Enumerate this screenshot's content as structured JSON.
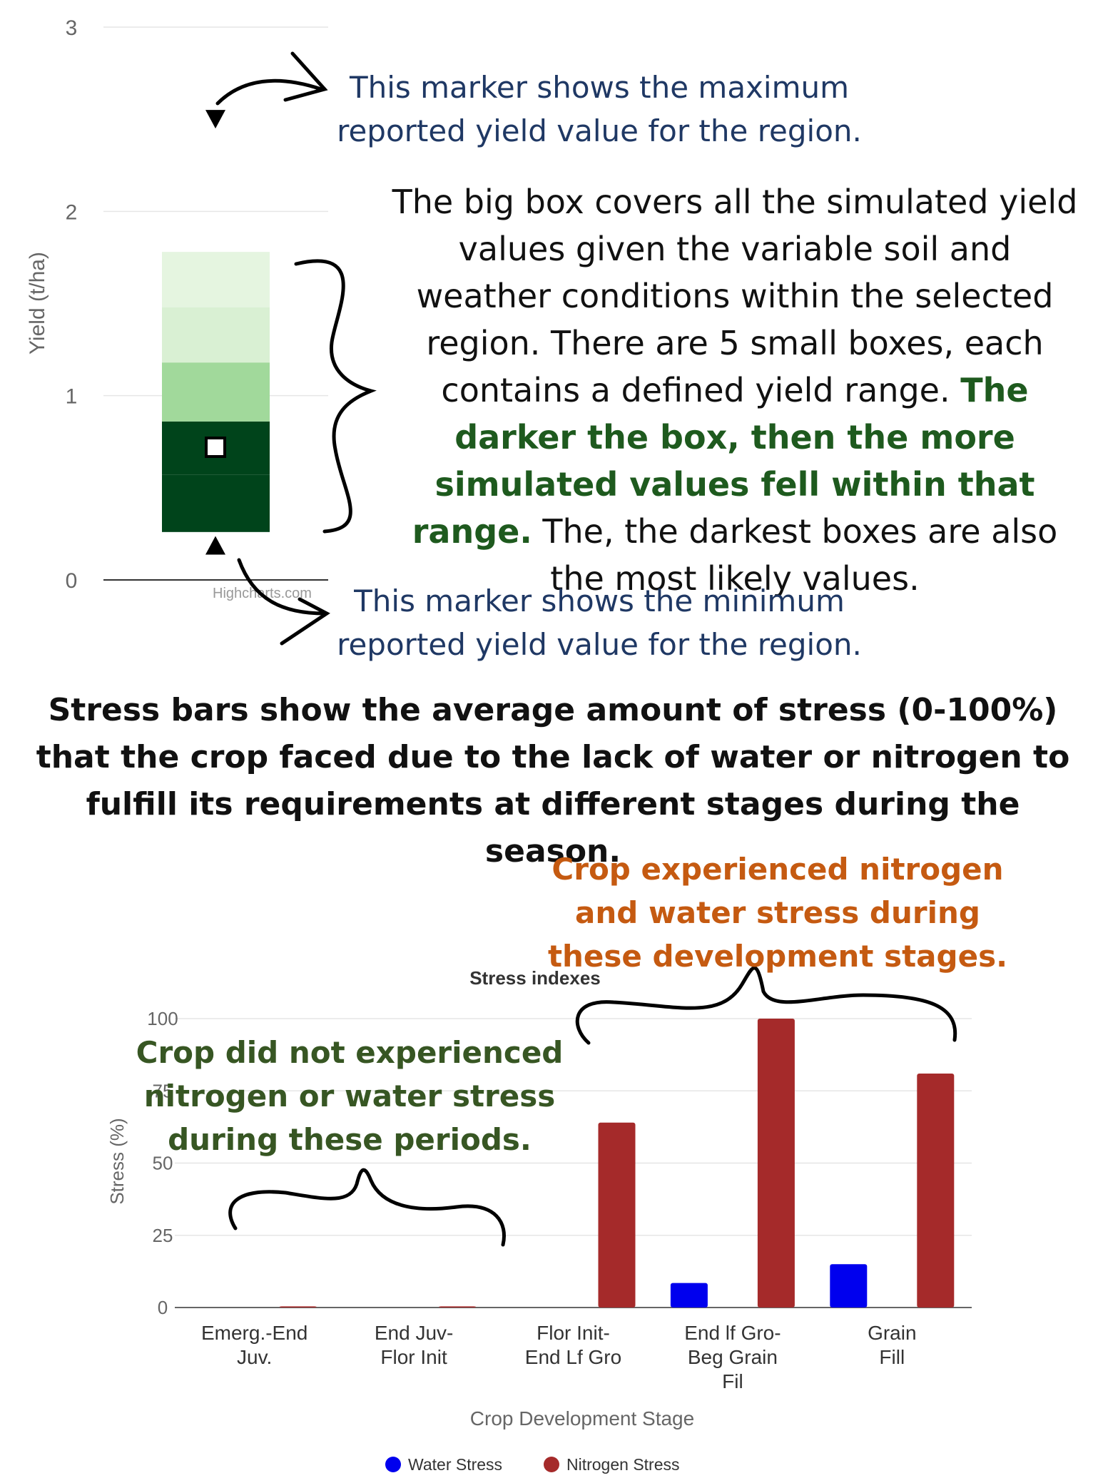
{
  "box_chart": {
    "ylabel": "Yield (t/ha)",
    "ylim": [
      0,
      3
    ],
    "ticks": [
      "0",
      "1",
      "2",
      "3"
    ],
    "credit": "Highcharts.com",
    "max_marker": 2.5,
    "min_marker": 0.18,
    "median_marker": 0.72,
    "boxes": [
      {
        "from": 0.26,
        "to": 0.57,
        "color": "#00441b"
      },
      {
        "from": 0.57,
        "to": 0.86,
        "color": "#00441b"
      },
      {
        "from": 0.86,
        "to": 1.18,
        "color": "#a1d99b"
      },
      {
        "from": 1.18,
        "to": 1.48,
        "color": "#d9f0d3"
      },
      {
        "from": 1.48,
        "to": 1.78,
        "color": "#e5f5e0"
      }
    ]
  },
  "annotations": {
    "max_line1": "This marker shows the maximum",
    "max_line2": "reported yield value for the region.",
    "box_part1": "The big box covers all the simulated yield values given the variable soil and weather conditions within the selected region. There are 5 small boxes, each contains a defined yield range.",
    "box_bold": "The darker the box, then the more simulated values fell within that range.",
    "box_part2": "The, the darkest boxes are also the most likely values.",
    "min_line1": "This marker shows the minimum",
    "min_line2": "reported yield value for the region."
  },
  "heading": {
    "line1": "Stress bars show the average amount of stress (0-100%)",
    "line2": "that the crop faced due to the lack of water or nitrogen to",
    "line3": "fulfill its requirements at different stages during the season."
  },
  "callouts": {
    "orange_line1": "Crop experienced nitrogen",
    "orange_line2": "and water stress during",
    "orange_line3": "these development stages.",
    "green_line1": "Crop did not experienced",
    "green_line2": "nitrogen or water stress",
    "green_line3": "during these periods."
  },
  "chart_data": {
    "type": "bar",
    "title": "Stress indexes",
    "xlabel": "Crop Development Stage",
    "ylabel": "Stress (%)",
    "ylim": [
      0,
      100
    ],
    "yticks": [
      "0",
      "25",
      "50",
      "75",
      "100"
    ],
    "categories": [
      [
        "Emerg.-End",
        "Juv."
      ],
      [
        "End Juv-",
        "Flor Init"
      ],
      [
        "Flor Init-",
        "End Lf Gro"
      ],
      [
        "End lf Gro-",
        "Beg Grain",
        "Fil"
      ],
      [
        "Grain",
        "Fill"
      ]
    ],
    "series": [
      {
        "name": "Water Stress",
        "color": "#0000ee",
        "values": [
          0,
          0,
          0,
          8.5,
          15
        ]
      },
      {
        "name": "Nitrogen Stress",
        "color": "#a52a2a",
        "values": [
          0.4,
          0.4,
          64,
          100,
          81
        ]
      }
    ],
    "legend": "bottom-center"
  }
}
